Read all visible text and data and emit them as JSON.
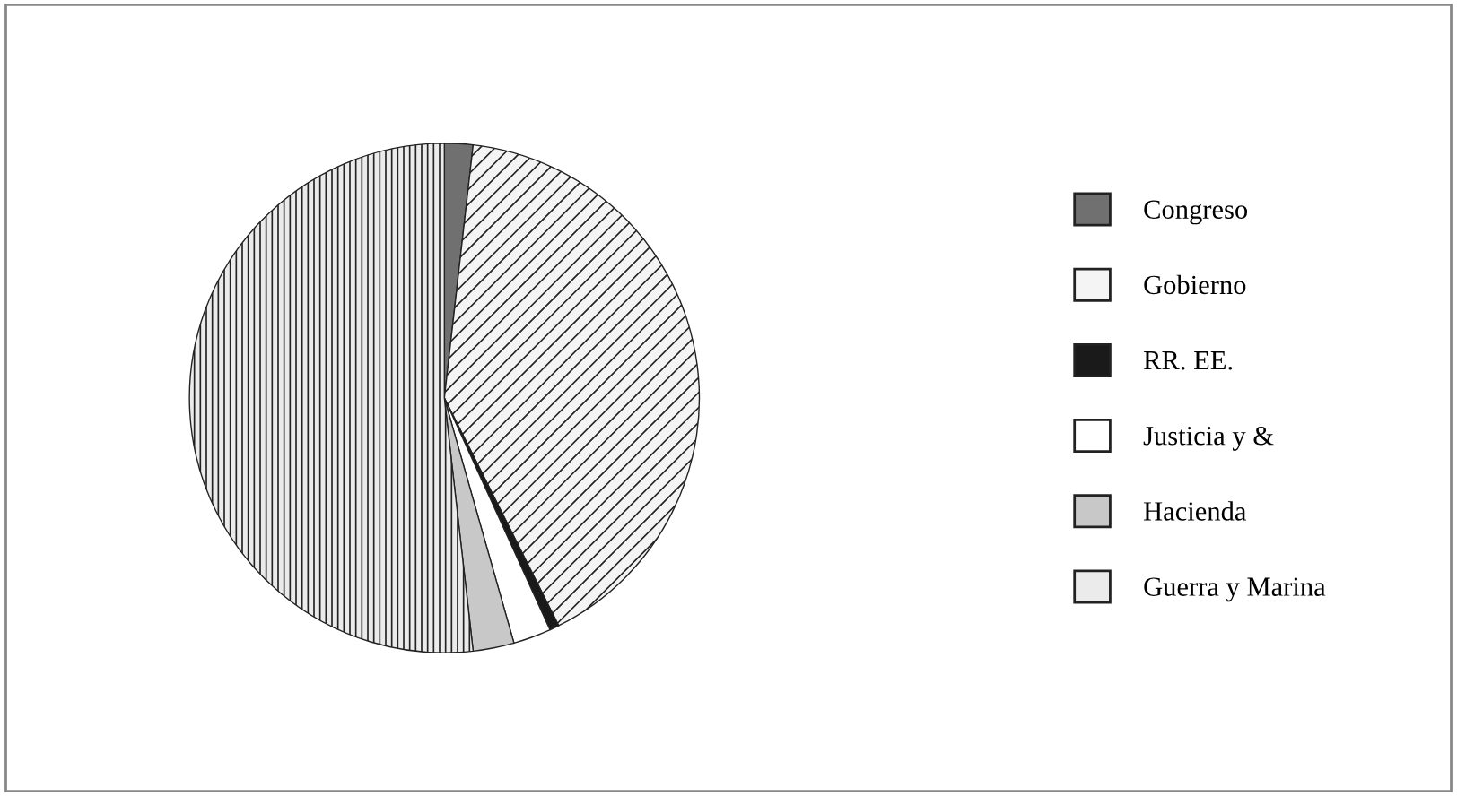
{
  "chart_data": {
    "type": "pie",
    "categories": [
      "Congreso",
      "Gobierno",
      "RR. EE.",
      "Justicia y &",
      "Hacienda",
      "Guerra y Marina"
    ],
    "values": [
      1.8,
      40.8,
      0.6,
      2.4,
      2.6,
      51.8
    ],
    "colors": [
      "#707070",
      "#f4f4f4",
      "#1a1a1a",
      "#ffffff",
      "#c8c8c8",
      "#ebebeb"
    ],
    "legend": "right"
  }
}
